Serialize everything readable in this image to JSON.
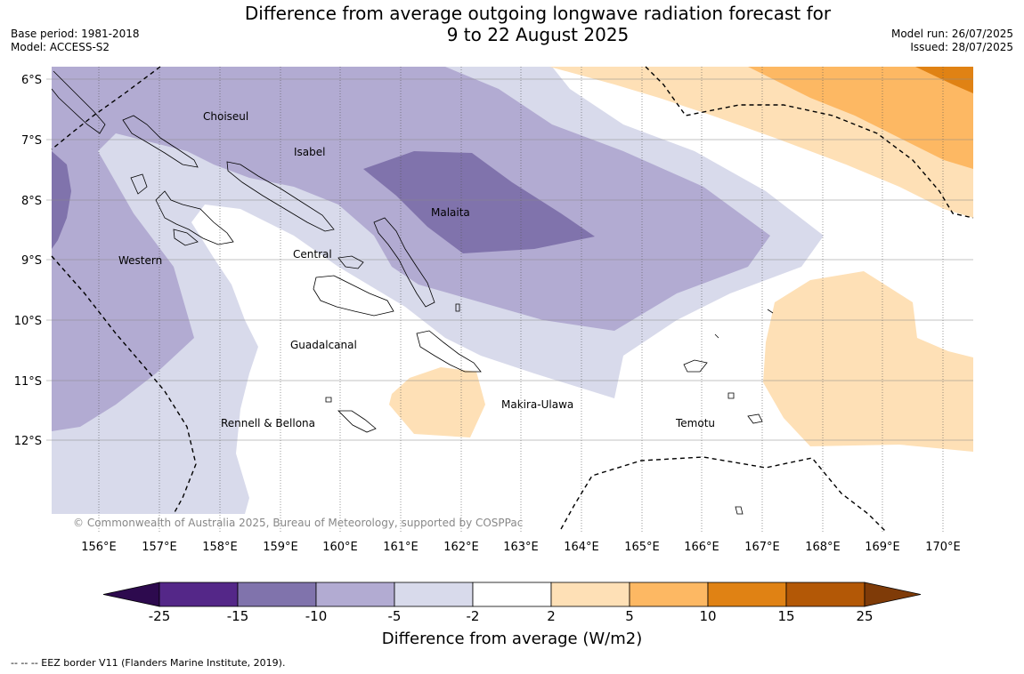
{
  "title": {
    "line1": "Difference from average outgoing longwave radiation forecast for",
    "line2": "9 to 22 August 2025"
  },
  "meta_left": {
    "base_period": "Base period: 1981-2018",
    "model": "Model: ACCESS-S2"
  },
  "meta_right": {
    "model_run": "Model run: 26/07/2025",
    "issued": "Issued: 28/07/2025"
  },
  "map": {
    "longitude_ticks": [
      "156°E",
      "157°E",
      "158°E",
      "159°E",
      "160°E",
      "161°E",
      "162°E",
      "163°E",
      "164°E",
      "165°E",
      "166°E",
      "167°E",
      "168°E",
      "169°E",
      "170°E"
    ],
    "latitude_ticks": [
      "6°S",
      "7°S",
      "8°S",
      "9°S",
      "10°S",
      "11°S",
      "12°S"
    ],
    "province_labels": {
      "choiseul": "Choiseul",
      "isabel": "Isabel",
      "malaita": "Malaita",
      "central": "Central",
      "western": "Western",
      "guadalcanal": "Guadalcanal",
      "rennell_bellona": "Rennell & Bellona",
      "makira_ulawa": "Makira-Ulawa",
      "temotu": "Temotu"
    },
    "copyright": "© Commonwealth of Australia 2025, Bureau of Meteorology, supported by COSPPac"
  },
  "colorbar": {
    "labels": [
      "-25",
      "-15",
      "-10",
      "-5",
      "-2",
      "2",
      "5",
      "10",
      "15",
      "25"
    ],
    "colors": [
      "#2d0a4e",
      "#542788",
      "#8073ac",
      "#b2abd2",
      "#d8daeb",
      "#ffffff",
      "#fee0b6",
      "#fdb863",
      "#e08214",
      "#b35806",
      "#7f3b08"
    ],
    "title": "Difference from average (W/m2)"
  },
  "footnote": "-- -- -- EEZ border V11 (Flanders Marine Institute, 2019)."
}
